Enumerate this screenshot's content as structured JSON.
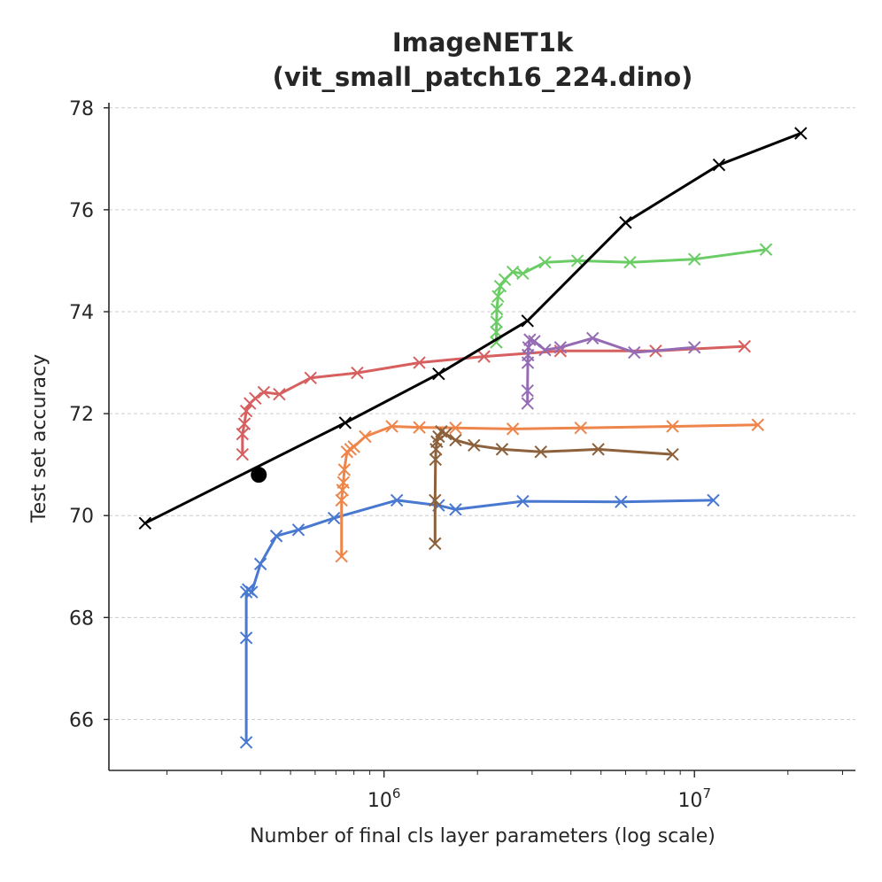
{
  "chart_data": {
    "type": "line",
    "title_lines": [
      "ImageNET1k",
      "(vit_small_patch16_224.dino)"
    ],
    "xlabel": "Number of final cls layer parameters (log scale)",
    "ylabel": "Test set accuracy",
    "xscale": "log",
    "xlim": [
      130000,
      33000000
    ],
    "ylim": [
      65.0,
      78.1
    ],
    "x_ticks": [
      {
        "value": 1000000,
        "base": "10",
        "exp": "6"
      },
      {
        "value": 10000000,
        "base": "10",
        "exp": "7"
      }
    ],
    "y_ticks": [
      66,
      68,
      70,
      72,
      74,
      76,
      78
    ],
    "grid": "horizontal dashed",
    "series": [
      {
        "color": "#4878d0",
        "marker": "x",
        "points": [
          [
            360000,
            65.55
          ],
          [
            360000,
            67.6
          ],
          [
            360000,
            68.5
          ],
          [
            365000,
            68.55
          ],
          [
            375000,
            68.5
          ],
          [
            400000,
            69.05
          ],
          [
            450000,
            69.6
          ],
          [
            530000,
            69.72
          ],
          [
            690000,
            69.95
          ],
          [
            1100000,
            70.3
          ],
          [
            1500000,
            70.2
          ],
          [
            1700000,
            70.12
          ],
          [
            2800000,
            70.28
          ],
          [
            5800000,
            70.27
          ],
          [
            11500000,
            70.3
          ]
        ]
      },
      {
        "color": "#ee854a",
        "marker": "x",
        "points": [
          [
            730000,
            69.2
          ],
          [
            730000,
            70.3
          ],
          [
            735000,
            70.5
          ],
          [
            740000,
            70.65
          ],
          [
            745000,
            70.9
          ],
          [
            760000,
            71.25
          ],
          [
            780000,
            71.3
          ],
          [
            800000,
            71.35
          ],
          [
            870000,
            71.55
          ],
          [
            1060000,
            71.75
          ],
          [
            1300000,
            71.73
          ],
          [
            1700000,
            71.72
          ],
          [
            2600000,
            71.7
          ],
          [
            4300000,
            71.72
          ],
          [
            8500000,
            71.75
          ],
          [
            16000000,
            71.78
          ]
        ]
      },
      {
        "color": "#6acc64",
        "marker": "x",
        "points": [
          [
            2300000,
            73.4
          ],
          [
            2300000,
            73.6
          ],
          [
            2305000,
            73.8
          ],
          [
            2310000,
            74.05
          ],
          [
            2330000,
            74.3
          ],
          [
            2370000,
            74.5
          ],
          [
            2450000,
            74.63
          ],
          [
            2600000,
            74.78
          ],
          [
            2800000,
            74.75
          ],
          [
            3300000,
            74.97
          ],
          [
            4200000,
            75.0
          ],
          [
            6200000,
            74.97
          ],
          [
            10000000,
            75.03
          ],
          [
            17000000,
            75.22
          ]
        ]
      },
      {
        "color": "#d65f5f",
        "marker": "x",
        "points": [
          [
            350000,
            71.2
          ],
          [
            350000,
            71.6
          ],
          [
            355000,
            71.8
          ],
          [
            360000,
            72.05
          ],
          [
            370000,
            72.2
          ],
          [
            385000,
            72.3
          ],
          [
            410000,
            72.42
          ],
          [
            460000,
            72.38
          ],
          [
            580000,
            72.7
          ],
          [
            820000,
            72.8
          ],
          [
            1300000,
            73.0
          ],
          [
            2100000,
            73.12
          ],
          [
            3700000,
            73.23
          ],
          [
            7500000,
            73.23
          ],
          [
            14500000,
            73.32
          ]
        ]
      },
      {
        "color": "#956cb4",
        "marker": "x",
        "points": [
          [
            2900000,
            72.2
          ],
          [
            2900000,
            72.45
          ],
          [
            2905000,
            73.0
          ],
          [
            2910000,
            73.15
          ],
          [
            2920000,
            73.3
          ],
          [
            2950000,
            73.45
          ],
          [
            3050000,
            73.42
          ],
          [
            3300000,
            73.25
          ],
          [
            3700000,
            73.3
          ],
          [
            4700000,
            73.48
          ],
          [
            6400000,
            73.2
          ],
          [
            10000000,
            73.3
          ]
        ]
      },
      {
        "color": "#8c613c",
        "marker": "x",
        "points": [
          [
            1460000,
            69.45
          ],
          [
            1460000,
            70.3
          ],
          [
            1465000,
            71.1
          ],
          [
            1470000,
            71.3
          ],
          [
            1480000,
            71.45
          ],
          [
            1500000,
            71.55
          ],
          [
            1530000,
            71.65
          ],
          [
            1580000,
            71.6
          ],
          [
            1700000,
            71.48
          ],
          [
            1950000,
            71.38
          ],
          [
            2400000,
            71.3
          ],
          [
            3200000,
            71.25
          ],
          [
            4900000,
            71.3
          ],
          [
            8500000,
            71.2
          ]
        ]
      },
      {
        "color": "#000000",
        "marker": "x",
        "points": [
          [
            170000,
            69.85
          ],
          [
            750000,
            71.82
          ],
          [
            1500000,
            72.78
          ],
          [
            2900000,
            73.82
          ],
          [
            6000000,
            75.75
          ],
          [
            12000000,
            76.88
          ],
          [
            22000000,
            77.5
          ]
        ]
      }
    ],
    "reference_point": {
      "x": 395000,
      "y": 70.8,
      "color": "#000000",
      "marker": "o"
    }
  }
}
